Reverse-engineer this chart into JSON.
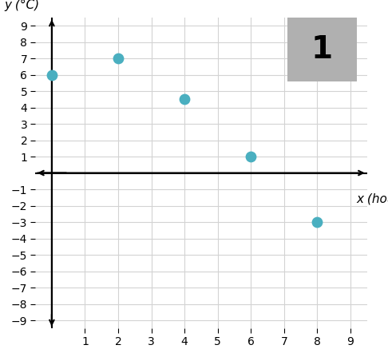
{
  "points_x": [
    0,
    2,
    4,
    6,
    8
  ],
  "points_y": [
    6,
    7,
    4.5,
    1,
    -3
  ],
  "dot_color": "#4aafc0",
  "dot_size": 80,
  "xlim": [
    -0.5,
    9.5
  ],
  "ylim": [
    -9.5,
    9.5
  ],
  "xticks": [
    1,
    2,
    3,
    4,
    5,
    6,
    7,
    8,
    9
  ],
  "yticks": [
    -9,
    -8,
    -7,
    -6,
    -5,
    -4,
    -3,
    -2,
    -1,
    1,
    2,
    3,
    4,
    5,
    6,
    7,
    8,
    9
  ],
  "xlabel": "x (hours)",
  "ylabel": "y (°C)",
  "grid_color": "#d3d3d3",
  "axis_color": "#000000",
  "background_color": "#ffffff",
  "label_number": "1",
  "tick_fontsize": 10,
  "axis_label_fontsize": 11
}
